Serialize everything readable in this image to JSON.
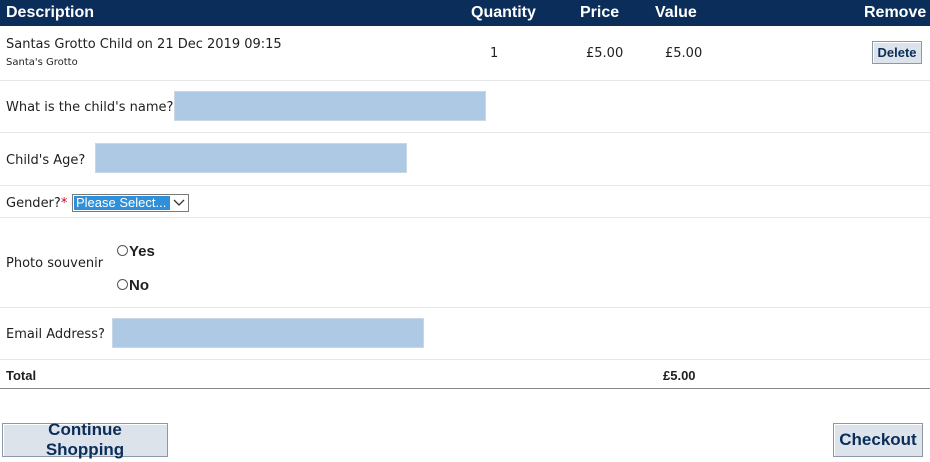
{
  "header": {
    "description": "Description",
    "quantity": "Quantity",
    "price": "Price",
    "value": "Value",
    "remove": "Remove"
  },
  "item": {
    "title": "Santas Grotto Child on 21 Dec 2019 09:15",
    "subtitle": "Santa's Grotto",
    "quantity": "1",
    "price": "£5.00",
    "value": "£5.00",
    "delete_label": "Delete"
  },
  "form": {
    "child_name_label": "What is the child's name?",
    "child_name_value": "",
    "child_age_label": "Child's Age?",
    "child_age_value": "",
    "gender_label": "Gender?",
    "gender_required": "*",
    "gender_selected": "Please Select...",
    "photo_label": "Photo souvenir",
    "photo_options": [
      "Yes",
      "No"
    ],
    "email_label": "Email Address?",
    "email_value": ""
  },
  "totals": {
    "label": "Total",
    "value": "£5.00"
  },
  "actions": {
    "continue_label": "Continue Shopping",
    "checkout_label": "Checkout"
  },
  "colors": {
    "header_bg": "#0b2d5a",
    "field_bg": "#aec9e4",
    "select_highlight": "#2f8fd8"
  },
  "icons": {
    "select_arrow": "chevron-down-icon",
    "radio": "radio-button"
  }
}
